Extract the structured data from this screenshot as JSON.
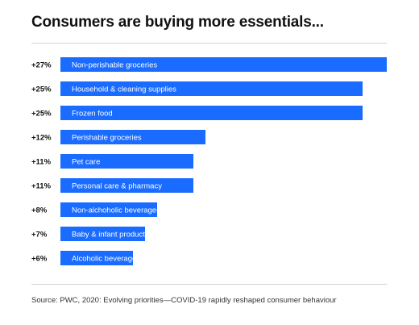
{
  "chart_data": {
    "type": "bar",
    "orientation": "horizontal",
    "title": "Consumers are buying more essentials...",
    "categories": [
      "Non-perishable groceries",
      "Household & cleaning supplies",
      "Frozen food",
      "Perishable groceries",
      "Pet care",
      "Personal care & pharmacy",
      "Non-alchoholic beverages",
      "Baby & infant products",
      "Alcoholic beverages & tobacco"
    ],
    "values": [
      27,
      25,
      25,
      12,
      11,
      11,
      8,
      7,
      6
    ],
    "value_labels": [
      "+27%",
      "+25%",
      "+25%",
      "+12%",
      "+11%",
      "+11%",
      "+8%",
      "+7%",
      "+6%"
    ],
    "unit": "%",
    "color": "#1a6bff",
    "grid": false,
    "legend": "none"
  },
  "source": "Source: PWC, 2020: Evolving priorities—COVID-19 rapidly reshaped consumer behaviour"
}
